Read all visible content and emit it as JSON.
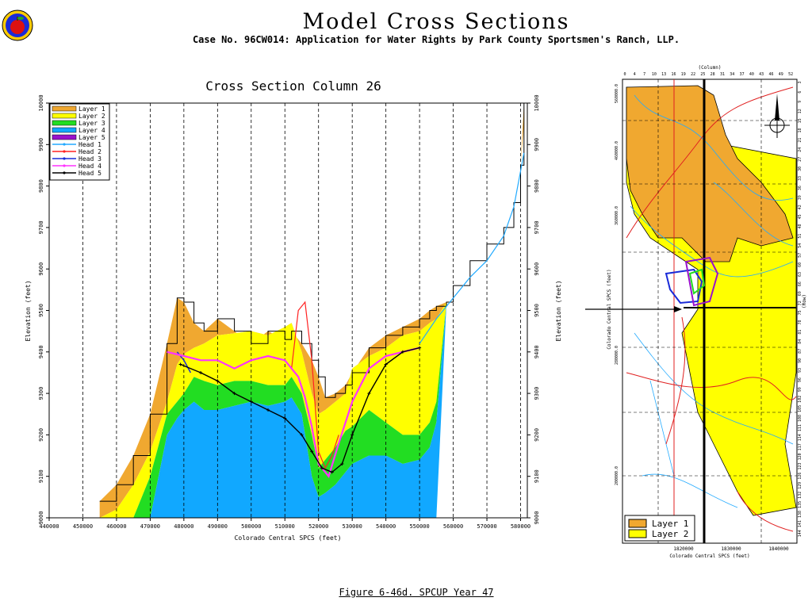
{
  "header": {
    "title": "Model Cross Sections",
    "subtitle": "Case No. 96CW014: Application for Water Rights by Park County Sportsmen's Ranch, LLP."
  },
  "caption": "Figure 6-46d.  SPCUP Year 47",
  "colors": {
    "layer1": "#f0a830",
    "layer2": "#ffff00",
    "layer3": "#22dd22",
    "layer4": "#11a8ff",
    "layer5": "#9911cc",
    "head1": "#22aaff",
    "head2": "#ff2222",
    "head3": "#1a2bd8",
    "head4": "#ff33ff",
    "head5": "#000000"
  },
  "chart_data": [
    {
      "type": "area",
      "title": "Cross Section Column 26",
      "xlabel": "Colorado Central SPCS (feet)",
      "ylabel": "Elevation (feet)",
      "ylabel_right": "Elevation (feet)",
      "xlim": [
        440000,
        582000
      ],
      "ylim": [
        9000,
        10000
      ],
      "x_ticks": [
        "440000",
        "450000",
        "460000",
        "470000",
        "480000",
        "490000",
        "500000",
        "510000",
        "520000",
        "530000",
        "540000",
        "550000",
        "560000",
        "570000",
        "580000"
      ],
      "y_ticks": [
        "9000",
        "9100",
        "9200",
        "9300",
        "9400",
        "9500",
        "9600",
        "9700",
        "9800",
        "9900",
        "10000"
      ],
      "grid": "vertical dashed",
      "legend_position": "top-left",
      "legend": [
        "Layer 1",
        "Layer 2",
        "Layer 3",
        "Layer 4",
        "Layer 5",
        "Head 1",
        "Head 2",
        "Head 3",
        "Head 4",
        "Head 5"
      ],
      "x": [
        455000,
        460000,
        465000,
        470000,
        475000,
        478000,
        480000,
        483000,
        486000,
        490000,
        495000,
        500000,
        505000,
        510000,
        512000,
        515000,
        518000,
        520000,
        522000,
        525000,
        528000,
        530000,
        535000,
        540000,
        545000,
        550000,
        553000,
        555000,
        558000,
        560000,
        565000,
        570000,
        575000,
        578000,
        580000,
        581000
      ],
      "layer_bottoms": {
        "layer1": [
          9000,
          9020,
          9080,
          9160,
          9280,
          9370,
          9395,
          9410,
          9420,
          9440,
          9445,
          9450,
          9440,
          9460,
          9470,
          9400,
          9300,
          9250,
          9260,
          9280,
          9300,
          9360,
          9390,
          9410,
          9440,
          9450,
          9470,
          9480,
          9520,
          9560,
          9620,
          9660,
          9700,
          9760,
          9850,
          9950
        ],
        "layer2": [
          9000,
          9000,
          9000,
          9100,
          9250,
          9280,
          9300,
          9340,
          9330,
          9320,
          9330,
          9330,
          9320,
          9320,
          9340,
          9300,
          9200,
          9120,
          9140,
          9170,
          9210,
          9220,
          9260,
          9230,
          9200,
          9200,
          9230,
          9280,
          9520,
          9560,
          9620,
          9660,
          9700,
          9760,
          9850,
          9950
        ],
        "layer3": [
          9000,
          9000,
          9000,
          9000,
          9200,
          9240,
          9260,
          9280,
          9260,
          9260,
          9270,
          9280,
          9270,
          9280,
          9290,
          9250,
          9100,
          9050,
          9060,
          9080,
          9110,
          9130,
          9150,
          9150,
          9130,
          9140,
          9170,
          9230,
          9520,
          9560,
          9620,
          9660,
          9700,
          9760,
          9850,
          9950
        ],
        "layer4": [
          9000,
          9000,
          9000,
          9000,
          9000,
          9000,
          9000,
          9000,
          9000,
          9000,
          9000,
          9000,
          9000,
          9000,
          9000,
          9000,
          9000,
          9000,
          9000,
          9000,
          9000,
          9000,
          9000,
          9000,
          9000,
          9000,
          9000,
          9000,
          9520,
          9560,
          9620,
          9660,
          9700,
          9760,
          9850,
          9950
        ],
        "layer5": [
          9000,
          9000,
          9000,
          9000,
          9000,
          9000,
          9000,
          9000,
          9000,
          9000,
          9000,
          9000,
          9000,
          9000,
          9000,
          9000,
          9000,
          9000,
          9000,
          9000,
          9000,
          9000,
          9000,
          9000,
          9000,
          9000,
          9000,
          9000,
          9520,
          9560,
          9620,
          9660,
          9700,
          9760,
          9850,
          9950
        ]
      },
      "land_surface": [
        9040,
        9080,
        9150,
        9250,
        9420,
        9530,
        9520,
        9470,
        9450,
        9480,
        9450,
        9420,
        9450,
        9430,
        9450,
        9420,
        9380,
        9340,
        9290,
        9300,
        9320,
        9350,
        9410,
        9440,
        9460,
        9480,
        9500,
        9510,
        9520,
        9560,
        9620,
        9660,
        9700,
        9760,
        9850,
        10000
      ],
      "series": [
        {
          "name": "Head 1",
          "x": [
            550000,
            555000,
            560000,
            565000,
            570000,
            575000,
            578000,
            581000
          ],
          "values": [
            9420,
            9480,
            9530,
            9580,
            9620,
            9680,
            9750,
            9880
          ]
        },
        {
          "name": "Head 2",
          "x": [
            512000,
            514000,
            516000,
            518000,
            520000,
            522000,
            524000,
            526000
          ],
          "values": [
            9360,
            9500,
            9520,
            9380,
            9160,
            9120,
            9150,
            9200
          ]
        },
        {
          "name": "Head 3",
          "x": [
            478000,
            480000,
            482000
          ],
          "values": [
            9400,
            9380,
            9350
          ]
        },
        {
          "name": "Head 4",
          "x": [
            475000,
            480000,
            485000,
            490000,
            495000,
            500000,
            505000,
            510000,
            514000,
            516000,
            518000,
            520000,
            523000,
            526000,
            530000,
            535000,
            540000,
            545000,
            550000
          ],
          "values": [
            9400,
            9390,
            9380,
            9380,
            9360,
            9380,
            9390,
            9380,
            9340,
            9290,
            9220,
            9130,
            9100,
            9180,
            9280,
            9360,
            9390,
            9400,
            9410
          ]
        },
        {
          "name": "Head 5",
          "x": [
            479000,
            485000,
            490000,
            495000,
            500000,
            505000,
            510000,
            515000,
            518000,
            521000,
            524000,
            527000,
            530000,
            535000,
            540000,
            545000,
            550000
          ],
          "values": [
            9370,
            9350,
            9330,
            9300,
            9280,
            9260,
            9240,
            9200,
            9160,
            9120,
            9110,
            9130,
            9200,
            9300,
            9370,
            9400,
            9410
          ]
        }
      ]
    },
    {
      "type": "map",
      "ylabel": "Colorado Central SPCS (feet)",
      "xlabel": "Colorado Central SPCS (feet)",
      "top_label": "(Column)",
      "right_label": "(Row)",
      "x_ticks": [
        "1820000",
        "1830000",
        "1840000"
      ],
      "y_ticks": [
        "560000.0",
        "460000.0",
        "360000.0",
        "280000.0",
        "200000.0"
      ],
      "column_ticks": [
        "0",
        "4",
        "7",
        "10",
        "13",
        "16",
        "19",
        "22",
        "25",
        "28",
        "31",
        "34",
        "37",
        "40",
        "43",
        "46",
        "49",
        "52"
      ],
      "row_ticks": [
        "3",
        "6",
        "9",
        "12",
        "15",
        "18",
        "21",
        "24",
        "27",
        "30",
        "33",
        "36",
        "39",
        "42",
        "45",
        "48",
        "51",
        "54",
        "57",
        "60",
        "63",
        "66",
        "69",
        "72",
        "75",
        "78",
        "81",
        "84",
        "87",
        "90",
        "93",
        "96",
        "99",
        "102",
        "105",
        "108",
        "111",
        "114",
        "117",
        "120",
        "123",
        "126",
        "129",
        "132",
        "135",
        "138",
        "141",
        "144"
      ],
      "legend": [
        "Layer 1",
        "Layer 2"
      ]
    }
  ]
}
